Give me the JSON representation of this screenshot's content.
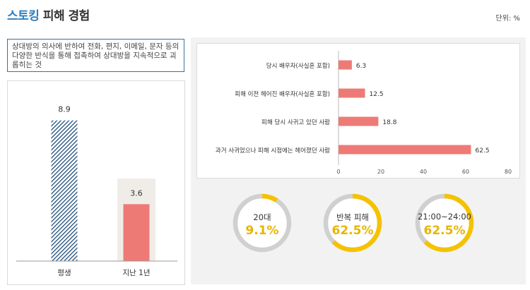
{
  "header": {
    "title_accent": "스토킹",
    "title_rest": " 피해 경험",
    "unit": "단위: %"
  },
  "description": "상대방의 의사에 반하여 전화, 편지, 이메일, 문자 등의 다양한 반식을 통해 접촉하여 상대방을 지속적으로 괴롭히는 것",
  "colors": {
    "accent_blue": "#2d7fc1",
    "bar_red": "#ee7a76",
    "hatch_navy": "#1f4e79",
    "donut_gold": "#f5c200",
    "donut_track": "#d0d0d0",
    "highlight_bg": "#f0ede8"
  },
  "chart_data": [
    {
      "type": "bar",
      "categories": [
        "평생",
        "지난 1년"
      ],
      "values": [
        8.9,
        3.6
      ],
      "data_labels": [
        "8.9",
        "3.6"
      ],
      "styles": [
        "hatched",
        "solid"
      ],
      "grid": false,
      "legend": "none"
    },
    {
      "type": "bar",
      "orientation": "horizontal",
      "categories": [
        "당시 배우자(사실혼 포함)",
        "피해 이전 헤어진 배우자(사실혼 포함)",
        "피해 당시 사귀고 있던 사람",
        "과거 사귀었으나 피해 시점에는 헤어졌던 사람"
      ],
      "values": [
        6.3,
        12.5,
        18.8,
        62.5
      ],
      "data_labels": [
        "6.3",
        "12.5",
        "18.8",
        "62.5"
      ],
      "xticks": [
        "0",
        "20",
        "40",
        "60",
        "80"
      ],
      "xlim": [
        0,
        80
      ],
      "grid": false,
      "legend": "none"
    },
    {
      "type": "pie",
      "variant": "donut",
      "items": [
        {
          "label": "20대",
          "value": 9.1,
          "display": "9.1%"
        },
        {
          "label": "반복 피해",
          "value": 62.5,
          "display": "62.5%"
        },
        {
          "label": "21:00~24:00",
          "value": 62.5,
          "display": "62.5%"
        }
      ]
    }
  ]
}
